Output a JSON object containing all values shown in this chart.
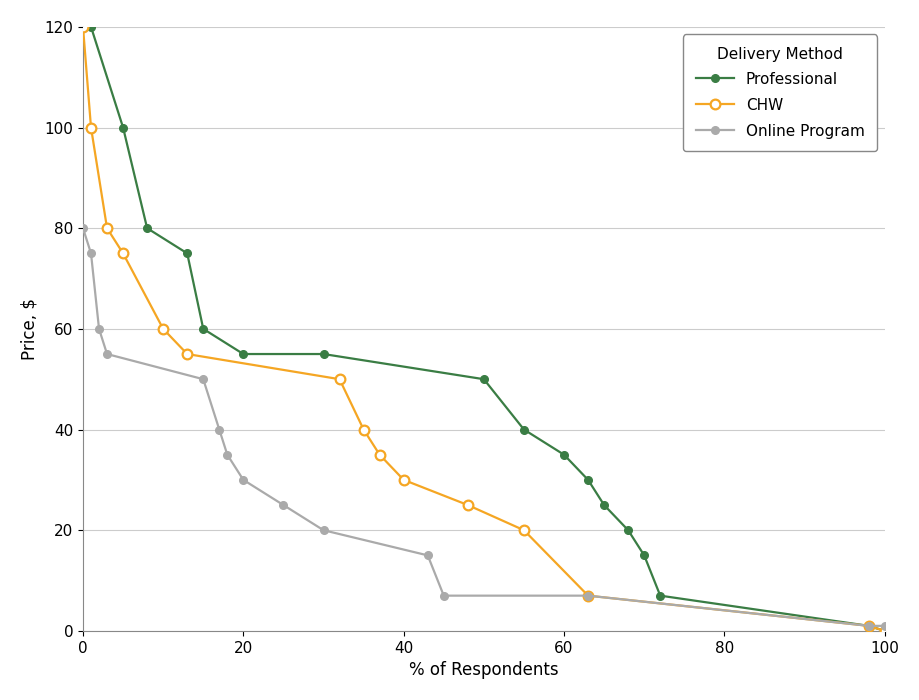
{
  "professional_x": [
    0,
    1,
    5,
    8,
    13,
    15,
    20,
    30,
    50,
    55,
    60,
    63,
    65,
    68,
    70,
    72,
    98,
    100
  ],
  "professional_y": [
    120,
    120,
    100,
    80,
    75,
    60,
    55,
    55,
    50,
    40,
    35,
    30,
    25,
    20,
    15,
    7,
    1,
    0
  ],
  "chw_x": [
    0,
    1,
    3,
    5,
    10,
    13,
    32,
    35,
    37,
    40,
    48,
    55,
    63,
    98,
    100
  ],
  "chw_y": [
    120,
    100,
    80,
    75,
    60,
    55,
    50,
    40,
    35,
    30,
    25,
    20,
    7,
    1,
    0
  ],
  "online_x": [
    0,
    1,
    2,
    3,
    15,
    17,
    18,
    20,
    25,
    30,
    43,
    45,
    63,
    98,
    100
  ],
  "online_y": [
    80,
    75,
    60,
    55,
    50,
    40,
    35,
    30,
    25,
    20,
    15,
    7,
    7,
    1,
    1
  ],
  "professional_color": "#3a7d44",
  "chw_color": "#f5a623",
  "online_color": "#aaaaaa",
  "xlabel": "% of Respondents",
  "ylabel": "Price, $",
  "xlim": [
    0,
    100
  ],
  "ylim": [
    0,
    120
  ],
  "legend_title": "Delivery Method",
  "legend_labels": [
    "Professional",
    "CHW",
    "Online Program"
  ],
  "background_color": "#ffffff",
  "grid_color": "#cccccc",
  "xticks": [
    0,
    20,
    40,
    60,
    80,
    100
  ],
  "yticks": [
    0,
    20,
    40,
    60,
    80,
    100,
    120
  ]
}
